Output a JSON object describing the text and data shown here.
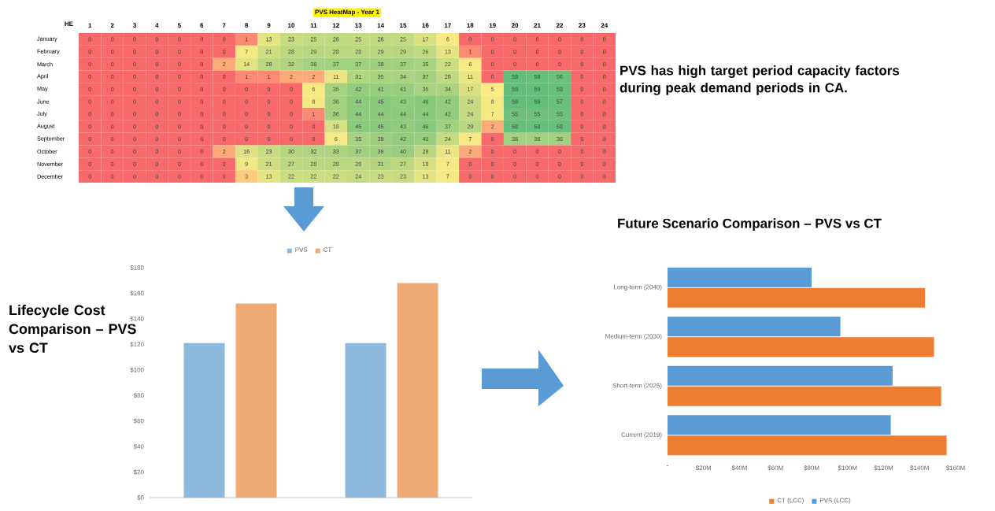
{
  "chart_data": [
    {
      "type": "heatmap",
      "title": "PVS HeatMap - Year 1",
      "xlabel": "HE",
      "categories": [
        "1",
        "2",
        "3",
        "4",
        "5",
        "6",
        "7",
        "8",
        "9",
        "10",
        "11",
        "12",
        "13",
        "14",
        "15",
        "16",
        "17",
        "18",
        "19",
        "20",
        "21",
        "22",
        "23",
        "24"
      ],
      "y_categories": [
        "January",
        "February",
        "March",
        "April",
        "May",
        "June",
        "July",
        "August",
        "September",
        "October",
        "November",
        "December"
      ],
      "cells": [
        [
          0,
          0,
          0,
          0,
          0,
          0,
          0,
          1,
          13,
          23,
          25,
          26,
          25,
          26,
          25,
          17,
          6,
          0,
          0,
          0,
          0,
          0,
          0,
          0
        ],
        [
          0,
          0,
          0,
          0,
          0,
          0,
          0,
          7,
          21,
          28,
          29,
          28,
          28,
          29,
          29,
          26,
          13,
          1,
          0,
          0,
          0,
          0,
          0,
          0
        ],
        [
          0,
          0,
          0,
          0,
          0,
          0,
          2,
          14,
          28,
          32,
          36,
          37,
          37,
          38,
          37,
          35,
          22,
          6,
          0,
          0,
          0,
          0,
          0,
          0
        ],
        [
          0,
          0,
          0,
          0,
          0,
          0,
          0,
          1,
          1,
          2,
          2,
          11,
          31,
          35,
          34,
          37,
          26,
          11,
          0,
          59,
          58,
          56,
          0,
          0
        ],
        [
          0,
          0,
          0,
          0,
          0,
          0,
          0,
          0,
          0,
          0,
          6,
          35,
          42,
          41,
          41,
          35,
          34,
          17,
          5,
          59,
          59,
          58,
          0,
          0
        ],
        [
          0,
          0,
          0,
          0,
          0,
          0,
          0,
          0,
          0,
          0,
          8,
          36,
          44,
          45,
          43,
          46,
          42,
          24,
          8,
          59,
          59,
          57,
          0,
          0
        ],
        [
          0,
          0,
          0,
          0,
          0,
          0,
          0,
          0,
          0,
          0,
          1,
          36,
          44,
          44,
          44,
          44,
          42,
          24,
          7,
          55,
          55,
          55,
          0,
          0
        ],
        [
          0,
          0,
          0,
          0,
          0,
          0,
          0,
          0,
          0,
          0,
          0,
          18,
          45,
          45,
          43,
          46,
          37,
          29,
          2,
          58,
          58,
          58,
          0,
          0
        ],
        [
          0,
          0,
          0,
          0,
          0,
          0,
          0,
          0,
          0,
          0,
          0,
          6,
          35,
          39,
          42,
          40,
          24,
          7,
          0,
          36,
          36,
          36,
          0,
          0
        ],
        [
          0,
          0,
          0,
          0,
          0,
          0,
          2,
          16,
          23,
          30,
          32,
          33,
          37,
          38,
          40,
          28,
          11,
          2,
          0,
          0,
          0,
          0,
          0,
          0
        ],
        [
          0,
          0,
          0,
          0,
          0,
          0,
          0,
          9,
          21,
          27,
          28,
          28,
          28,
          31,
          27,
          18,
          7,
          0,
          0,
          0,
          0,
          0,
          0,
          0
        ],
        [
          0,
          0,
          0,
          0,
          0,
          0,
          0,
          3,
          13,
          22,
          22,
          22,
          24,
          23,
          23,
          13,
          7,
          0,
          0,
          0,
          0,
          0,
          0,
          0
        ]
      ],
      "data_labels": true,
      "annotations": [
        "PVS has high target period capacity factors during peak demand periods in CA."
      ]
    },
    {
      "type": "bar",
      "title": "Lifecycle Cost Comparison – PVS vs CT",
      "categories": [
        null,
        null
      ],
      "series": [
        {
          "name": "PVS",
          "color": "#8db9dd",
          "values": [
            121,
            121
          ]
        },
        {
          "name": "CT",
          "color": "#eeaa72",
          "values": [
            152,
            168
          ]
        }
      ],
      "ylim": [
        0,
        180
      ],
      "yticks": [
        {
          "value": 0,
          "label": "$0"
        },
        {
          "value": 20,
          "label": "$20"
        },
        {
          "value": 40,
          "label": "$40"
        },
        {
          "value": 60,
          "label": "$60"
        },
        {
          "value": 80,
          "label": "$80"
        },
        {
          "value": 100,
          "label": "$100"
        },
        {
          "value": 120,
          "label": "$120"
        },
        {
          "value": 140,
          "label": "$140"
        },
        {
          "value": 160,
          "label": "$160"
        },
        {
          "value": 180,
          "label": "$180"
        }
      ],
      "legend": "top"
    },
    {
      "type": "bar",
      "orientation": "horizontal",
      "title": "Future Scenario Comparison – PVS vs CT",
      "categories": [
        "Long-term (2040)",
        "Medium-term (2030)",
        "Short-term (2025)",
        "Current (2019)"
      ],
      "series": [
        {
          "name": "CT (LCC)",
          "color": "#ed7d31",
          "values": [
            143,
            148,
            152,
            155
          ]
        },
        {
          "name": "PVS (LCC)",
          "color": "#5b9bd5",
          "values": [
            80,
            96,
            125,
            124
          ]
        }
      ],
      "xlim": [
        0,
        160
      ],
      "xticks": [
        {
          "value": 0,
          "label": "-"
        },
        {
          "value": 20,
          "label": "$20M"
        },
        {
          "value": 40,
          "label": "$40M"
        },
        {
          "value": 60,
          "label": "$60M"
        },
        {
          "value": 80,
          "label": "$80M"
        },
        {
          "value": 100,
          "label": "$100M"
        },
        {
          "value": 120,
          "label": "$120M"
        },
        {
          "value": 140,
          "label": "$140M"
        },
        {
          "value": 160,
          "label": "$160M"
        }
      ],
      "legend": "bottom"
    }
  ]
}
